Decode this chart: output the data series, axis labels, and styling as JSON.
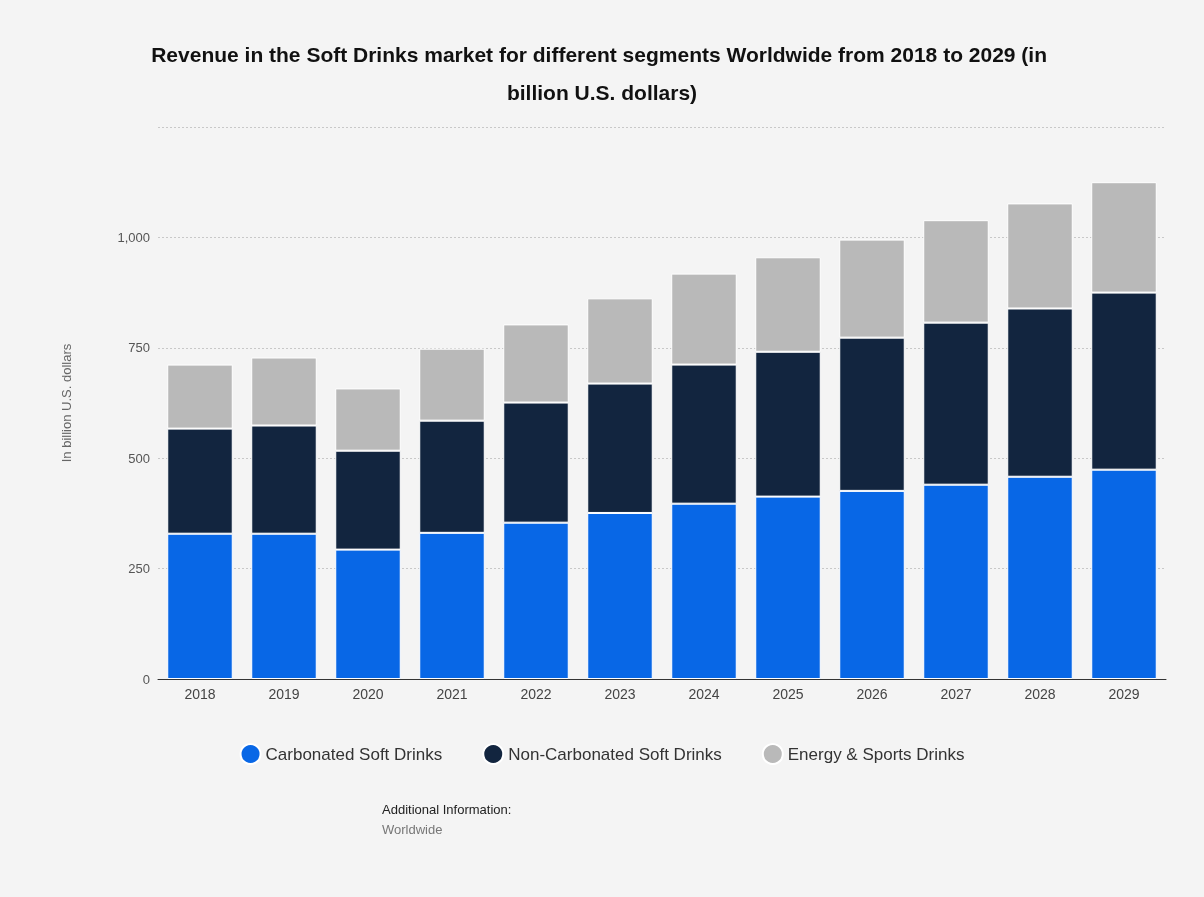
{
  "chart_data": {
    "type": "bar",
    "title": "Revenue in the Soft Drinks market for different segments Worldwide from 2018 to 2029 (in billion U.S. dollars)",
    "ylabel": "In billion U.S. dollars",
    "categories": [
      "2018",
      "2019",
      "2020",
      "2021",
      "2022",
      "2023",
      "2024",
      "2025",
      "2026",
      "2027",
      "2028",
      "2029"
    ],
    "stacked": true,
    "series": [
      {
        "name": "Carbonated Soft Drinks",
        "color": "#0867e6",
        "values": [
          329,
          329,
          293,
          331,
          354,
          376,
          397,
          413,
          426,
          440,
          458,
          474
        ]
      },
      {
        "name": "Non-Carbonated Soft Drinks",
        "color": "#12253f",
        "values": [
          238,
          245,
          224,
          254,
          272,
          293,
          315,
          328,
          347,
          367,
          381,
          401
        ]
      },
      {
        "name": "Energy & Sports Drinks",
        "color": "#b9b9b9",
        "values": [
          145,
          154,
          141,
          163,
          177,
          193,
          206,
          214,
          222,
          232,
          238,
          250
        ]
      }
    ],
    "ylim": [
      0,
      1250
    ],
    "yticks": [
      0,
      250,
      500,
      750,
      {
        "value": 1000,
        "label": "1,000"
      },
      {
        "value": 1250,
        "label": null
      }
    ],
    "grid": "y",
    "legend": "bottom",
    "annotations": [
      "Additional Information:",
      "Worldwide"
    ]
  }
}
